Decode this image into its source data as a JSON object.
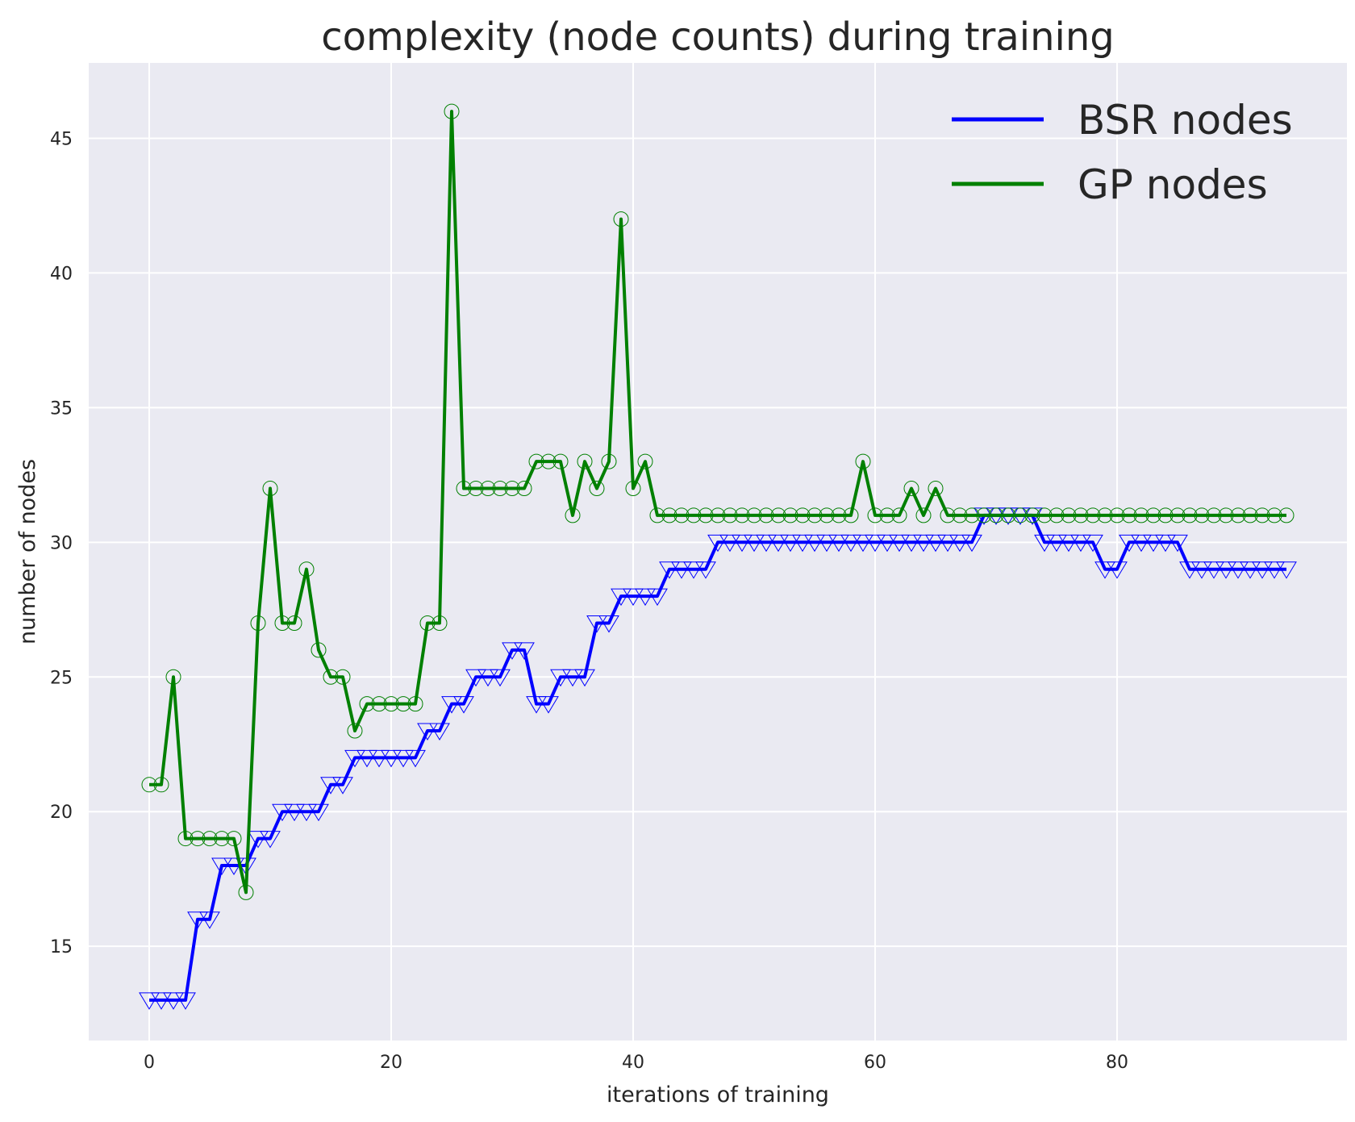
{
  "chart_data": {
    "type": "line",
    "title": "complexity (node counts) during training",
    "xlabel": "iterations of training",
    "ylabel": "number of nodes",
    "xlim": [
      -5,
      99
    ],
    "ylim": [
      11.5,
      47.8
    ],
    "xticks": [
      0,
      20,
      40,
      60,
      80
    ],
    "yticks": [
      15,
      20,
      25,
      30,
      35,
      40,
      45
    ],
    "grid": true,
    "legend_position": "top-right",
    "background": "#eaeaf2",
    "x": [
      0,
      1,
      2,
      3,
      4,
      5,
      6,
      7,
      8,
      9,
      10,
      11,
      12,
      13,
      14,
      15,
      16,
      17,
      18,
      19,
      20,
      21,
      22,
      23,
      24,
      25,
      26,
      27,
      28,
      29,
      30,
      31,
      32,
      33,
      34,
      35,
      36,
      37,
      38,
      39,
      40,
      41,
      42,
      43,
      44,
      45,
      46,
      47,
      48,
      49,
      50,
      51,
      52,
      53,
      54,
      55,
      56,
      57,
      58,
      59,
      60,
      61,
      62,
      63,
      64,
      65,
      66,
      67,
      68,
      69,
      70,
      71,
      72,
      73,
      74,
      75,
      76,
      77,
      78,
      79,
      80,
      81,
      82,
      83,
      84,
      85,
      86,
      87,
      88,
      89,
      90,
      91,
      92,
      93,
      94
    ],
    "series": [
      {
        "name": "BSR nodes",
        "color": "#0000ff",
        "marker": "triangle-down",
        "values": [
          13,
          13,
          13,
          13,
          16,
          16,
          18,
          18,
          18,
          19,
          19,
          20,
          20,
          20,
          20,
          21,
          21,
          22,
          22,
          22,
          22,
          22,
          22,
          23,
          23,
          24,
          24,
          25,
          25,
          25,
          26,
          26,
          24,
          24,
          25,
          25,
          25,
          27,
          27,
          28,
          28,
          28,
          28,
          29,
          29,
          29,
          29,
          30,
          30,
          30,
          30,
          30,
          30,
          30,
          30,
          30,
          30,
          30,
          30,
          30,
          30,
          30,
          30,
          30,
          30,
          30,
          30,
          30,
          30,
          31,
          31,
          31,
          31,
          31,
          30,
          30,
          30,
          30,
          30,
          29,
          29,
          30,
          30,
          30,
          30,
          30,
          29,
          29,
          29,
          29,
          29,
          29,
          29,
          29,
          29
        ]
      },
      {
        "name": "GP nodes",
        "color": "#008000",
        "marker": "circle",
        "values": [
          21,
          21,
          25,
          19,
          19,
          19,
          19,
          19,
          17,
          27,
          32,
          27,
          27,
          29,
          26,
          25,
          25,
          23,
          24,
          24,
          24,
          24,
          24,
          27,
          27,
          46,
          32,
          32,
          32,
          32,
          32,
          32,
          33,
          33,
          33,
          31,
          33,
          32,
          33,
          42,
          32,
          33,
          31,
          31,
          31,
          31,
          31,
          31,
          31,
          31,
          31,
          31,
          31,
          31,
          31,
          31,
          31,
          31,
          31,
          33,
          31,
          31,
          31,
          32,
          31,
          32,
          31,
          31,
          31,
          31,
          31,
          31,
          31,
          31,
          31,
          31,
          31,
          31,
          31,
          31,
          31,
          31,
          31,
          31,
          31,
          31,
          31,
          31,
          31,
          31,
          31,
          31,
          31,
          31,
          31
        ]
      }
    ]
  }
}
